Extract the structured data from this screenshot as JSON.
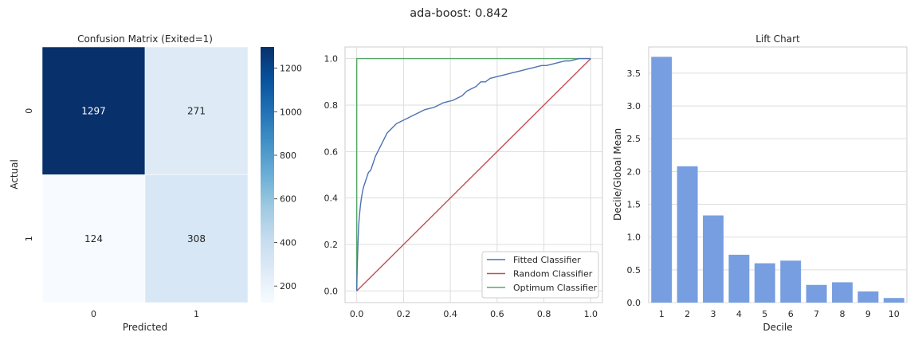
{
  "suptitle": "ada-boost: 0.842",
  "chart_data": [
    {
      "type": "heatmap",
      "title": "Confusion Matrix (Exited=1)",
      "xlabel": "Predicted",
      "ylabel": "Actual",
      "x_ticklabels": [
        "0",
        "1"
      ],
      "y_ticklabels": [
        "0",
        "1"
      ],
      "matrix": [
        [
          1297,
          271
        ],
        [
          124,
          308
        ]
      ],
      "colorbar": {
        "colormap": "Blues",
        "vmin": 124,
        "vmax": 1297,
        "ticks": [
          200,
          400,
          600,
          800,
          1000,
          1200
        ],
        "tick_labels": [
          "200",
          "400",
          "600",
          "800",
          "1000",
          "1200"
        ]
      }
    },
    {
      "type": "line",
      "title": "",
      "xlabel": "",
      "ylabel": "",
      "xlim": [
        -0.05,
        1.05
      ],
      "ylim": [
        -0.05,
        1.05
      ],
      "x_ticks": [
        0.0,
        0.2,
        0.4,
        0.6,
        0.8,
        1.0
      ],
      "x_ticklabels": [
        "0.0",
        "0.2",
        "0.4",
        "0.6",
        "0.8",
        "1.0"
      ],
      "y_ticks": [
        0.0,
        0.2,
        0.4,
        0.6,
        0.8,
        1.0
      ],
      "y_ticklabels": [
        "0.0",
        "0.2",
        "0.4",
        "0.6",
        "0.8",
        "1.0"
      ],
      "grid": true,
      "legend_position": "lower-right",
      "series": [
        {
          "name": "Fitted Classifier",
          "color": "#4c72b0",
          "x": [
            0.0,
            0.002,
            0.005,
            0.008,
            0.012,
            0.016,
            0.02,
            0.025,
            0.03,
            0.04,
            0.05,
            0.06,
            0.07,
            0.08,
            0.09,
            0.1,
            0.11,
            0.12,
            0.13,
            0.15,
            0.17,
            0.19,
            0.21,
            0.23,
            0.25,
            0.27,
            0.29,
            0.31,
            0.33,
            0.35,
            0.37,
            0.39,
            0.41,
            0.43,
            0.45,
            0.47,
            0.49,
            0.51,
            0.53,
            0.55,
            0.57,
            0.59,
            0.61,
            0.63,
            0.65,
            0.67,
            0.69,
            0.71,
            0.73,
            0.75,
            0.77,
            0.79,
            0.81,
            0.83,
            0.85,
            0.87,
            0.89,
            0.91,
            0.93,
            0.95,
            0.97,
            1.0
          ],
          "y": [
            0.0,
            0.1,
            0.2,
            0.28,
            0.33,
            0.37,
            0.4,
            0.43,
            0.45,
            0.48,
            0.51,
            0.52,
            0.55,
            0.58,
            0.6,
            0.62,
            0.64,
            0.66,
            0.68,
            0.7,
            0.72,
            0.73,
            0.74,
            0.75,
            0.76,
            0.77,
            0.78,
            0.785,
            0.79,
            0.8,
            0.81,
            0.815,
            0.82,
            0.83,
            0.84,
            0.86,
            0.87,
            0.88,
            0.9,
            0.9,
            0.915,
            0.92,
            0.925,
            0.93,
            0.935,
            0.94,
            0.945,
            0.95,
            0.955,
            0.96,
            0.965,
            0.97,
            0.97,
            0.975,
            0.98,
            0.985,
            0.99,
            0.99,
            0.995,
            1.0,
            1.0,
            1.0
          ]
        },
        {
          "name": "Random Classifier",
          "color": "#c44e52",
          "x": [
            0,
            1
          ],
          "y": [
            0,
            1
          ]
        },
        {
          "name": "Optimum Classifier",
          "color": "#55a868",
          "x": [
            0,
            0,
            1
          ],
          "y": [
            0,
            1,
            1
          ]
        }
      ]
    },
    {
      "type": "bar",
      "title": "Lift Chart",
      "xlabel": "Decile",
      "ylabel": "Decile/Global Mean",
      "categories": [
        "1",
        "2",
        "3",
        "4",
        "5",
        "6",
        "7",
        "8",
        "9",
        "10"
      ],
      "values": [
        3.75,
        2.08,
        1.33,
        0.73,
        0.6,
        0.64,
        0.27,
        0.31,
        0.17,
        0.07
      ],
      "ylim": [
        0,
        3.9
      ],
      "y_ticks": [
        0.0,
        0.5,
        1.0,
        1.5,
        2.0,
        2.5,
        3.0,
        3.5
      ],
      "y_ticklabels": [
        "0.0",
        "0.5",
        "1.0",
        "1.5",
        "2.0",
        "2.5",
        "3.0",
        "3.5"
      ],
      "grid": true,
      "bar_color": "#779ee0"
    }
  ]
}
